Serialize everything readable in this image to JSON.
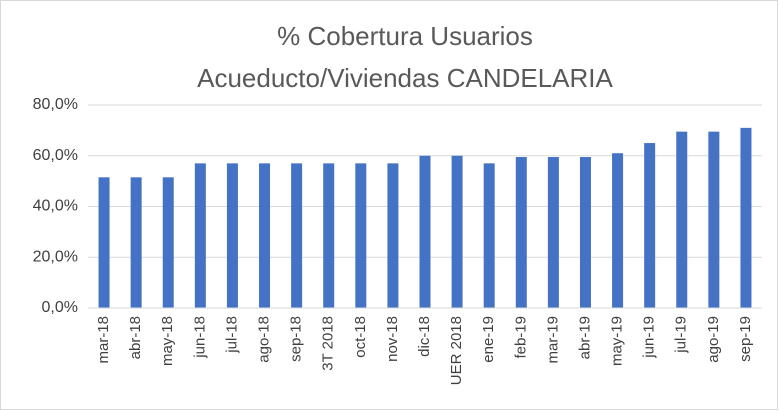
{
  "chart_data": {
    "type": "bar",
    "title": [
      "% Cobertura Usuarios",
      "Acueducto/Viviendas CANDELARIA"
    ],
    "categories": [
      "mar-18",
      "abr-18",
      "may-18",
      "jun-18",
      "jul-18",
      "ago-18",
      "sep-18",
      "3T 2018",
      "oct-18",
      "nov-18",
      "dic-18",
      "UER 2018",
      "ene-19",
      "feb-19",
      "mar-19",
      "abr-19",
      "may-19",
      "jun-19",
      "jul-19",
      "ago-19",
      "sep-19"
    ],
    "values": [
      51.5,
      51.5,
      51.5,
      57,
      57,
      57,
      57,
      57,
      57,
      57,
      60,
      60,
      57,
      59.5,
      59.5,
      59.5,
      61,
      65,
      69.5,
      69.5,
      71
    ],
    "color": "#4472c4",
    "ylim": [
      0,
      80
    ],
    "yticks": [
      {
        "value": 0,
        "label": "0,0%"
      },
      {
        "value": 20,
        "label": "20,0%"
      },
      {
        "value": 40,
        "label": "40,0%"
      },
      {
        "value": 60,
        "label": "60,0%"
      },
      {
        "value": 80,
        "label": "80,0%"
      }
    ],
    "grid": true
  }
}
